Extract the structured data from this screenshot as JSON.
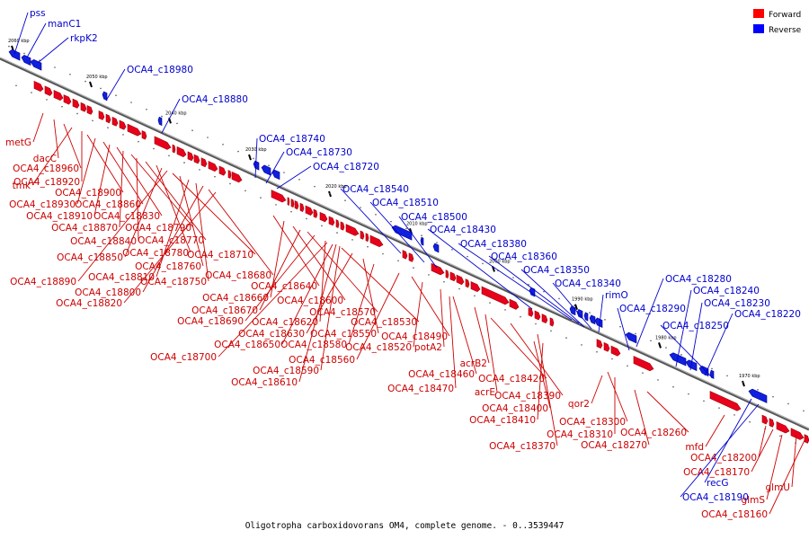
{
  "caption": "Oligotropha carboxidovorans OM4, complete genome. - 0..3539447",
  "legend": [
    {
      "label": "Forward",
      "color": "#ff0000"
    },
    {
      "label": "Reverse",
      "color": "#0000ff"
    }
  ],
  "colors": {
    "forward": "#e8001c",
    "reverse": "#1020e0",
    "forward_label": "#cc0000",
    "reverse_label": "#0000cc",
    "axis": "#777777"
  },
  "ticks": [
    "2060 kbp",
    "2050 kbp",
    "2040 kbp",
    "2030 kbp",
    "2020 kbp",
    "2010 kbp",
    "2000 kbp",
    "1990 kbp",
    "1980 kbp",
    "1970 kbp"
  ],
  "forward_labels": [
    "metG",
    "dacC",
    "OCA4_c18960",
    "tmk",
    "OCA4_c18920",
    "OCA4_c18900",
    "OCA4_c18930",
    "OCA4_c18860",
    "OCA4_c18910",
    "OCA4_c18830",
    "OCA4_c18870",
    "OCA4_c18790",
    "OCA4_c18840",
    "OCA4_c18770",
    "OCA4_c18780",
    "OCA4_c18710",
    "OCA4_c18850",
    "OCA4_c18760",
    "OCA4_c18890",
    "OCA4_c18810",
    "OCA4_c18750",
    "OCA4_c18800",
    "OCA4_c18680",
    "OCA4_c18820",
    "OCA4_c18640",
    "OCA4_c18660",
    "OCA4_c18600",
    "OCA4_c18670",
    "OCA4_c18570",
    "OCA4_c18690",
    "OCA4_c18620",
    "OCA4_c18530",
    "OCA4_c18630",
    "OCA4_c18550",
    "OCA4_c18490",
    "OCA4_c18650",
    "OCA4_c18580",
    "OCA4_c18520",
    "potA2",
    "OCA4_c18700",
    "OCA4_c18560",
    "acrB2",
    "OCA4_c18590",
    "OCA4_c18460",
    "OCA4_c18610",
    "OCA4_c18420",
    "OCA4_c18470",
    "acrE",
    "OCA4_c18390",
    "qor2",
    "OCA4_c18400",
    "OCA4_c18410",
    "OCA4_c18300",
    "OCA4_c18310",
    "OCA4_c18260",
    "OCA4_c18370",
    "OCA4_c18270",
    "mfd",
    "OCA4_c18200",
    "OCA4_c18170",
    "glmU",
    "glmS",
    "OCA4_c18160"
  ],
  "reverse_labels": [
    "pss",
    "manC1",
    "rkpK2",
    "OCA4_c18980",
    "OCA4_c18880",
    "OCA4_c18740",
    "OCA4_c18730",
    "OCA4_c18720",
    "OCA4_c18540",
    "OCA4_c18510",
    "OCA4_c18500",
    "OCA4_c18430",
    "OCA4_c18380",
    "OCA4_c18360",
    "OCA4_c18350",
    "OCA4_c18340",
    "rimO",
    "OCA4_c18280",
    "OCA4_c18290",
    "OCA4_c18240",
    "OCA4_c18230",
    "OCA4_c18220",
    "OCA4_c18250",
    "recG",
    "OCA4_c18190"
  ]
}
